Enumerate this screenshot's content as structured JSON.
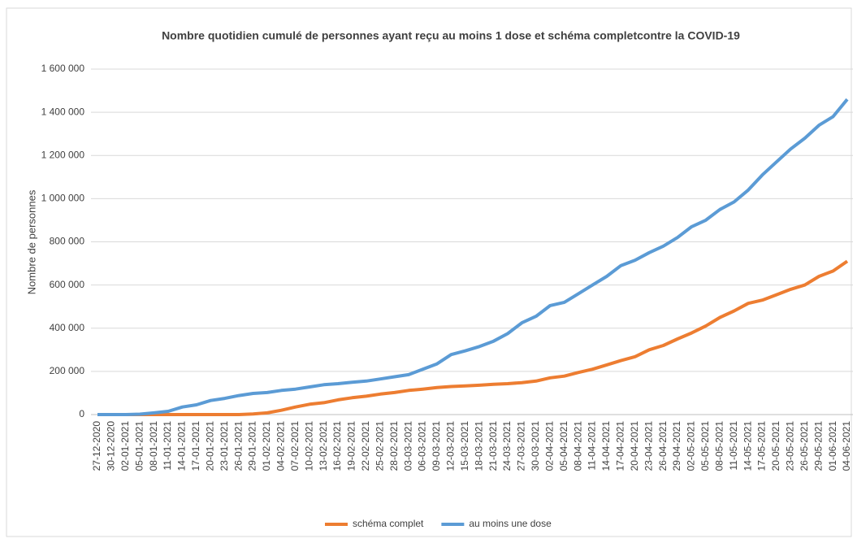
{
  "chart_data": {
    "type": "line",
    "title": "Nombre quotidien cumulé de personnes ayant reçu au moins 1 dose et schéma completcontre la COVID-19",
    "y_label": "Nombre de personnes",
    "categories": [
      "27-12-2020",
      "30-12-2020",
      "02-01-2021",
      "05-01-2021",
      "08-01-2021",
      "11-01-2021",
      "14-01-2021",
      "17-01-2021",
      "20-01-2021",
      "23-01-2021",
      "26-01-2021",
      "29-01-2021",
      "01-02-2021",
      "04-02-2021",
      "07-02-2021",
      "10-02-2021",
      "13-02-2021",
      "16-02-2021",
      "19-02-2021",
      "22-02-2021",
      "25-02-2021",
      "28-02-2021",
      "03-03-2021",
      "06-03-2021",
      "09-03-2021",
      "12-03-2021",
      "15-03-2021",
      "18-03-2021",
      "21-03-2021",
      "24-03-2021",
      "27-03-2021",
      "30-03-2021",
      "02-04-2021",
      "05-04-2021",
      "08-04-2021",
      "11-04-2021",
      "14-04-2021",
      "17-04-2021",
      "20-04-2021",
      "23-04-2021",
      "26-04-2021",
      "29-04-2021",
      "02-05-2021",
      "05-05-2021",
      "08-05-2021",
      "11-05-2021",
      "14-05-2021",
      "17-05-2021",
      "20-05-2021",
      "23-05-2021",
      "26-05-2021",
      "29-05-2021",
      "01-06-2021",
      "04-06-2021"
    ],
    "series": [
      {
        "name": "schéma complet",
        "color": "#ed7d31",
        "values": [
          0,
          0,
          0,
          0,
          0,
          0,
          0,
          0,
          0,
          0,
          0,
          3000,
          8000,
          20000,
          35000,
          48000,
          55000,
          68000,
          78000,
          85000,
          95000,
          102000,
          112000,
          118000,
          125000,
          130000,
          133000,
          136000,
          140000,
          143000,
          148000,
          155000,
          170000,
          178000,
          195000,
          210000,
          230000,
          250000,
          268000,
          300000,
          320000,
          350000,
          378000,
          410000,
          450000,
          480000,
          515000,
          530000,
          555000,
          580000,
          600000,
          640000,
          665000,
          710000
        ]
      },
      {
        "name": "au moins une dose",
        "color": "#5b9bd5",
        "values": [
          0,
          0,
          0,
          2000,
          8000,
          15000,
          35000,
          45000,
          65000,
          75000,
          88000,
          98000,
          102000,
          112000,
          118000,
          128000,
          138000,
          143000,
          150000,
          155000,
          165000,
          175000,
          185000,
          210000,
          235000,
          278000,
          295000,
          315000,
          340000,
          375000,
          425000,
          455000,
          505000,
          520000,
          560000,
          600000,
          640000,
          690000,
          715000,
          750000,
          780000,
          820000,
          870000,
          900000,
          950000,
          985000,
          1040000,
          1110000,
          1170000,
          1230000,
          1280000,
          1340000,
          1380000,
          1460000
        ]
      }
    ],
    "ylim": [
      0,
      1600000
    ],
    "yticks": [
      0,
      {
        "value": 200000,
        "label": "200 000"
      },
      {
        "value": 400000,
        "label": "400 000"
      },
      {
        "value": 600000,
        "label": "600 000"
      },
      {
        "value": 800000,
        "label": "800 000"
      },
      {
        "value": 1000000,
        "label": "1 000 000"
      },
      {
        "value": 1200000,
        "label": "1 200 000"
      },
      {
        "value": 1400000,
        "label": "1 400 000"
      },
      {
        "value": 1600000,
        "label": "1 600 000"
      }
    ],
    "grid": true,
    "legend": "bottom"
  }
}
